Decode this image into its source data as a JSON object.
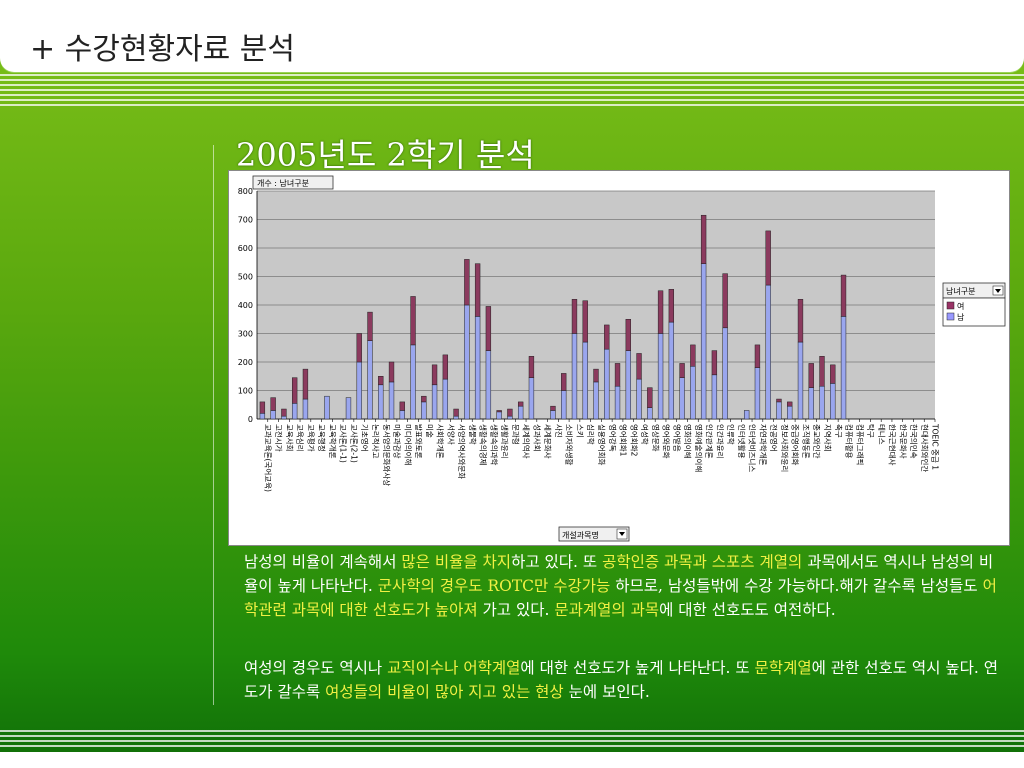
{
  "header": {
    "title": "+ 수강현황자료 분석"
  },
  "slide": {
    "title": "2005년도 2학기 분석"
  },
  "chart_data": {
    "type": "bar",
    "stacked": true,
    "filter_label": "개수 : 남녀구분",
    "legend_title": "남녀구분",
    "axis_button": "개설과목명",
    "ylim": [
      0,
      800
    ],
    "yticks": [
      0,
      100,
      200,
      300,
      400,
      500,
      600,
      700,
      800
    ],
    "grid": true,
    "legend_position": "right",
    "colors": {
      "female": "#8b3a5e",
      "male": "#9aa6ee",
      "female_legend": "#993366",
      "male_legend": "#9999ff"
    },
    "categories": [
      "교과교육론(국어교육)",
      "고전시가",
      "교육사회",
      "교육심리",
      "교육평가",
      "교육행정",
      "교육학개론",
      "교사론(1-1)",
      "교사론(2-1)",
      "기초영어",
      "논리적사고",
      "동서양의문화와사상",
      "미술과감상",
      "미디어의이해",
      "발표와토론",
      "미술",
      "사회학개론",
      "서양사",
      "서양의역사와문화",
      "생물학",
      "생활속의경제",
      "생활속의과학",
      "생활과윤리",
      "문과형",
      "세계의역사",
      "성과사회",
      "세계문화사",
      "사진",
      "소비자와생활",
      "스키",
      "심리학",
      "실용영어회화",
      "영어강독",
      "영어회화1",
      "영어회화2",
      "여성학",
      "영상문화",
      "영어와문화",
      "영어발음",
      "영화의이해",
      "영화예술의이해",
      "인간관계론",
      "인간과윤리",
      "인류학",
      "인터넷활용",
      "인터넷비즈니스",
      "자연과학개론",
      "전공영어",
      "정보사회와윤리",
      "중급영어회화",
      "조직행동론",
      "종교와인간",
      "지역사회",
      "축구",
      "컴퓨터활용",
      "컴퓨터그래픽",
      "탁구",
      "테니스",
      "한국근현대사",
      "한국문화사",
      "한국의민속",
      "현대사회와인간",
      "TOEIC 중급 1"
    ],
    "series": [
      {
        "name": "남",
        "values": [
          20,
          30,
          10,
          55,
          70,
          0,
          80,
          0,
          75,
          200,
          275,
          120,
          130,
          30,
          260,
          60,
          120,
          140,
          10,
          400,
          360,
          240,
          25,
          10,
          45,
          145,
          0,
          30,
          100,
          300,
          270,
          130,
          245,
          115,
          240,
          140,
          40,
          300,
          340,
          145,
          185,
          545,
          155,
          320,
          0,
          30,
          180,
          470,
          60,
          45,
          270,
          110,
          115,
          125,
          360,
          0,
          0,
          0,
          0,
          0,
          0,
          0,
          0
        ]
      },
      {
        "name": "여",
        "values": [
          40,
          45,
          25,
          90,
          105,
          0,
          0,
          0,
          0,
          100,
          100,
          30,
          70,
          30,
          170,
          20,
          70,
          85,
          25,
          160,
          185,
          155,
          5,
          25,
          15,
          75,
          0,
          15,
          60,
          120,
          145,
          45,
          85,
          80,
          110,
          90,
          70,
          150,
          115,
          50,
          75,
          170,
          85,
          190,
          0,
          0,
          80,
          190,
          10,
          15,
          150,
          85,
          105,
          65,
          145,
          0,
          0,
          0,
          0,
          0,
          0,
          0,
          0
        ]
      }
    ],
    "legend": [
      {
        "label": "여"
      },
      {
        "label": "남"
      }
    ]
  },
  "paragraphs": [
    [
      {
        "t": "남성의 비율이 계속해서 "
      },
      {
        "t": "많은 비율을 차지",
        "hl": true
      },
      {
        "t": "하고 있다. 또 "
      },
      {
        "t": "공학인증 과목과 스포츠 계열의",
        "hl": true
      },
      {
        "t": " 과목에서도 역시나 남성의 비율이 높게 나타난다. "
      },
      {
        "t": "군사학의 경우도 ROTC만 수강가능",
        "hl": true
      },
      {
        "t": " 하므로, 남성들밖에 수강 가능하다.해가 갈수록 남성들도 "
      },
      {
        "t": "어학관련 과목에 대한 선호도가 높아져",
        "hl": true
      },
      {
        "t": " 가고 있다. "
      },
      {
        "t": "문과계열의 과목",
        "hl": true
      },
      {
        "t": "에 대한 선호도도 여전하다."
      }
    ],
    [
      {
        "t": "여성의 경우도 역시나 "
      },
      {
        "t": "교직이수나 어학계열",
        "hl": true
      },
      {
        "t": "에 대한 선호도가 높게 나타난다. 또 "
      },
      {
        "t": "문학계열",
        "hl": true
      },
      {
        "t": "에 관한 선호도 역시 높다. 연도가 갈수록 "
      },
      {
        "t": "여성들의 비율이 많아 지고 있는 현상",
        "hl": true
      },
      {
        "t": " 눈에 보인다."
      }
    ]
  ]
}
